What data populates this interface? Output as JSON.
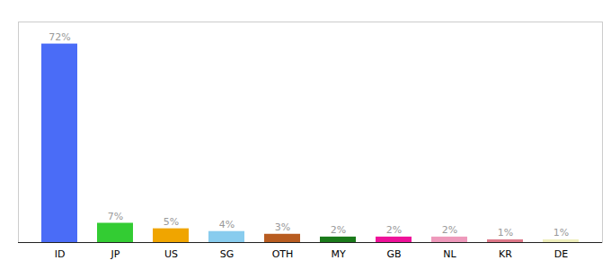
{
  "chart_data": {
    "type": "bar",
    "categories": [
      "ID",
      "JP",
      "US",
      "SG",
      "OTH",
      "MY",
      "GB",
      "NL",
      "KR",
      "DE"
    ],
    "values": [
      72,
      7,
      5,
      4,
      3,
      2,
      2,
      2,
      1,
      1
    ],
    "value_labels": [
      "72%",
      "7%",
      "5%",
      "4%",
      "3%",
      "2%",
      "2%",
      "2%",
      "1%",
      "1%"
    ],
    "colors": [
      "#4a6cf7",
      "#33cc33",
      "#f0a500",
      "#88ccee",
      "#b85c20",
      "#1a7a1a",
      "#ee1199",
      "#ee99bb",
      "#dd7788",
      "#eeeebb"
    ],
    "ylim": [
      0,
      80
    ],
    "grid": false,
    "data_labels": true,
    "tick_labels": "x"
  }
}
